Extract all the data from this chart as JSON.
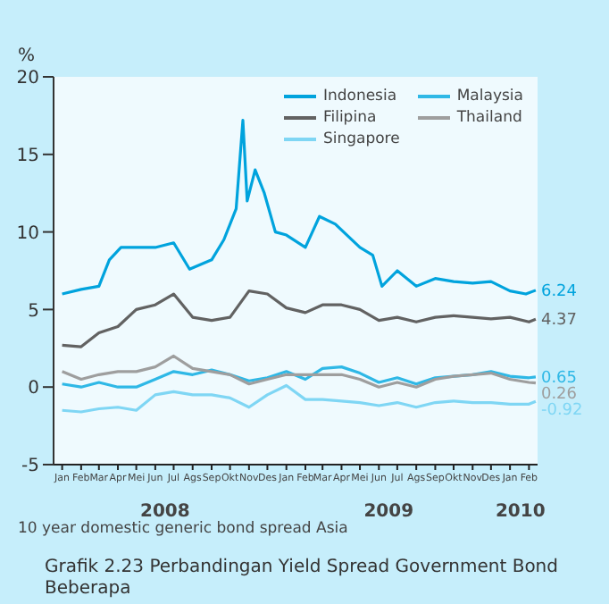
{
  "chart_data": {
    "type": "line",
    "title": "Grafik 2.23 Perbandingan Yield Spread Government Bond Beberapa",
    "ylabel": "%",
    "annotations": [
      "10 year domestic generic bond spread Asia"
    ],
    "x2lim": [
      "2008-01-01",
      "2010-03-01"
    ],
    "x2ticks": [
      {
        "value": "2008-07-01",
        "label": "2008"
      },
      {
        "value": "2009-07-01",
        "label": "2009"
      },
      {
        "value": "2010-02-01",
        "label": "2010"
      }
    ],
    "x": [
      "2008-01-15",
      "2008-02-15",
      "2008-03-15",
      "2008-04-15",
      "2008-05-15",
      "2008-06-15",
      "2008-07-15",
      "2008-08-15",
      "2008-09-15",
      "2008-10-15",
      "2008-11-15",
      "2008-12-15",
      "2009-01-15",
      "2009-02-15",
      "2009-03-15",
      "2009-04-15",
      "2009-05-15",
      "2009-06-15",
      "2009-07-15",
      "2009-08-15",
      "2009-09-15",
      "2009-10-15",
      "2009-11-15",
      "2009-12-15",
      "2010-01-15",
      "2010-02-15",
      "2010-02-26"
    ],
    "series": [
      {
        "name": "Indonesia",
        "color": "#00a3dd",
        "x": [
          "2008-01-15",
          "2008-02-15",
          "2008-03-15",
          "2008-04-01",
          "2008-04-20",
          "2008-05-15",
          "2008-06-15",
          "2008-07-15",
          "2008-08-10",
          "2008-09-15",
          "2008-10-05",
          "2008-10-25",
          "2008-11-05",
          "2008-11-12",
          "2008-11-25",
          "2008-12-10",
          "2008-12-28",
          "2009-01-15",
          "2009-02-15",
          "2009-03-10",
          "2009-04-05",
          "2009-05-15",
          "2009-06-05",
          "2009-06-20",
          "2009-07-15",
          "2009-08-15",
          "2009-09-15",
          "2009-10-15",
          "2009-11-15",
          "2009-12-15",
          "2010-01-15",
          "2010-02-10",
          "2010-02-26"
        ],
        "values": [
          6,
          6.3,
          6.5,
          8.2,
          9,
          9,
          9,
          9.3,
          7.6,
          8.2,
          9.5,
          11.5,
          17.2,
          12,
          14,
          12.5,
          10,
          9.8,
          9,
          11,
          10.5,
          9,
          8.5,
          6.5,
          7.5,
          6.5,
          7,
          6.8,
          6.7,
          6.8,
          6.2,
          6,
          6.24
        ],
        "value_labels": [
          null,
          null,
          null,
          null,
          null,
          null,
          null,
          null,
          null,
          null,
          null,
          null,
          null,
          null,
          null,
          null,
          null,
          null,
          null,
          null,
          null,
          null,
          null,
          null,
          null,
          null,
          null,
          null,
          null,
          null,
          null,
          null,
          "6.24"
        ]
      },
      {
        "name": "Malaysia",
        "color": "#2fb8e6",
        "values": [
          0.2,
          0,
          0.3,
          0,
          0,
          0.5,
          1,
          0.8,
          1.1,
          0.8,
          0.4,
          0.6,
          1,
          0.5,
          1.2,
          1.3,
          0.9,
          0.3,
          0.6,
          0.2,
          0.6,
          0.7,
          0.8,
          1,
          0.7,
          0.6,
          0.65
        ],
        "value_labels": [
          null,
          null,
          null,
          null,
          null,
          null,
          null,
          null,
          null,
          null,
          null,
          null,
          null,
          null,
          null,
          null,
          null,
          null,
          null,
          null,
          null,
          null,
          null,
          null,
          null,
          null,
          "0.65"
        ]
      },
      {
        "name": "Filipina",
        "color": "#626262",
        "values": [
          2.7,
          2.6,
          3.5,
          3.9,
          5,
          5.3,
          6,
          4.5,
          4.3,
          4.5,
          6.2,
          6,
          5.1,
          4.8,
          5.3,
          5.3,
          5,
          4.3,
          4.5,
          4.2,
          4.5,
          4.6,
          4.5,
          4.4,
          4.5,
          4.2,
          4.37
        ],
        "value_labels": [
          null,
          null,
          null,
          null,
          null,
          null,
          null,
          null,
          null,
          null,
          null,
          null,
          null,
          null,
          null,
          null,
          null,
          null,
          null,
          null,
          null,
          null,
          null,
          null,
          null,
          null,
          "4.37"
        ]
      },
      {
        "name": "Thailand",
        "color": "#9e9e9e",
        "values": [
          1,
          0.5,
          0.8,
          1,
          1,
          1.3,
          2,
          1.2,
          1,
          0.8,
          0.2,
          0.5,
          0.8,
          0.8,
          0.8,
          0.8,
          0.5,
          0,
          0.3,
          0,
          0.5,
          0.7,
          0.8,
          0.9,
          0.5,
          0.3,
          0.26
        ],
        "value_labels": [
          null,
          null,
          null,
          null,
          null,
          null,
          null,
          null,
          null,
          null,
          null,
          null,
          null,
          null,
          null,
          null,
          null,
          null,
          null,
          null,
          null,
          null,
          null,
          null,
          null,
          null,
          "0.26"
        ]
      },
      {
        "name": "Singapore",
        "color": "#7fd6f4",
        "values": [
          -1.5,
          -1.6,
          -1.4,
          -1.3,
          -1.5,
          -0.5,
          -0.3,
          -0.5,
          -0.5,
          -0.7,
          -1.3,
          -0.5,
          0.1,
          -0.8,
          -0.8,
          -0.9,
          -1,
          -1.2,
          -1,
          -1.3,
          -1,
          -0.9,
          -1,
          -1,
          -1.1,
          -1.1,
          -0.92
        ],
        "value_labels": [
          null,
          null,
          null,
          null,
          null,
          null,
          null,
          null,
          null,
          null,
          null,
          null,
          null,
          null,
          null,
          null,
          null,
          null,
          null,
          null,
          null,
          null,
          null,
          null,
          null,
          null,
          "-0.92"
        ]
      }
    ],
    "xlim": [
      "2008-01-01",
      "2010-03-01"
    ],
    "xticks": [
      {
        "value": "2008-01-15",
        "label": "Jan"
      },
      {
        "value": "2008-02-15",
        "label": "Feb"
      },
      {
        "value": "2008-03-15",
        "label": "Mar"
      },
      {
        "value": "2008-04-15",
        "label": "Apr"
      },
      {
        "value": "2008-05-15",
        "label": "Mei"
      },
      {
        "value": "2008-06-15",
        "label": "Jun"
      },
      {
        "value": "2008-07-15",
        "label": "Jul"
      },
      {
        "value": "2008-08-15",
        "label": "Ags"
      },
      {
        "value": "2008-09-15",
        "label": "Sep"
      },
      {
        "value": "2008-10-15",
        "label": "Okt"
      },
      {
        "value": "2008-11-15",
        "label": "Nov"
      },
      {
        "value": "2008-12-15",
        "label": "Des"
      },
      {
        "value": "2009-01-15",
        "label": "Jan"
      },
      {
        "value": "2009-02-15",
        "label": "Feb"
      },
      {
        "value": "2009-03-15",
        "label": "Mar"
      },
      {
        "value": "2009-04-15",
        "label": "Apr"
      },
      {
        "value": "2009-05-15",
        "label": "Mei"
      },
      {
        "value": "2009-06-15",
        "label": "Jun"
      },
      {
        "value": "2009-07-15",
        "label": "Jul"
      },
      {
        "value": "2009-08-15",
        "label": "Ags"
      },
      {
        "value": "2009-09-15",
        "label": "Sep"
      },
      {
        "value": "2009-10-15",
        "label": "Okt"
      },
      {
        "value": "2009-11-15",
        "label": "Nov"
      },
      {
        "value": "2009-12-15",
        "label": "Des"
      },
      {
        "value": "2010-01-15",
        "label": "Jan"
      },
      {
        "value": "2010-02-15",
        "label": "Feb"
      }
    ],
    "ylim": [
      -5,
      20
    ],
    "yticks": [
      -5,
      0,
      5,
      10,
      15,
      20
    ],
    "legend": "top right",
    "marker": "none",
    "line_style": "solid"
  }
}
